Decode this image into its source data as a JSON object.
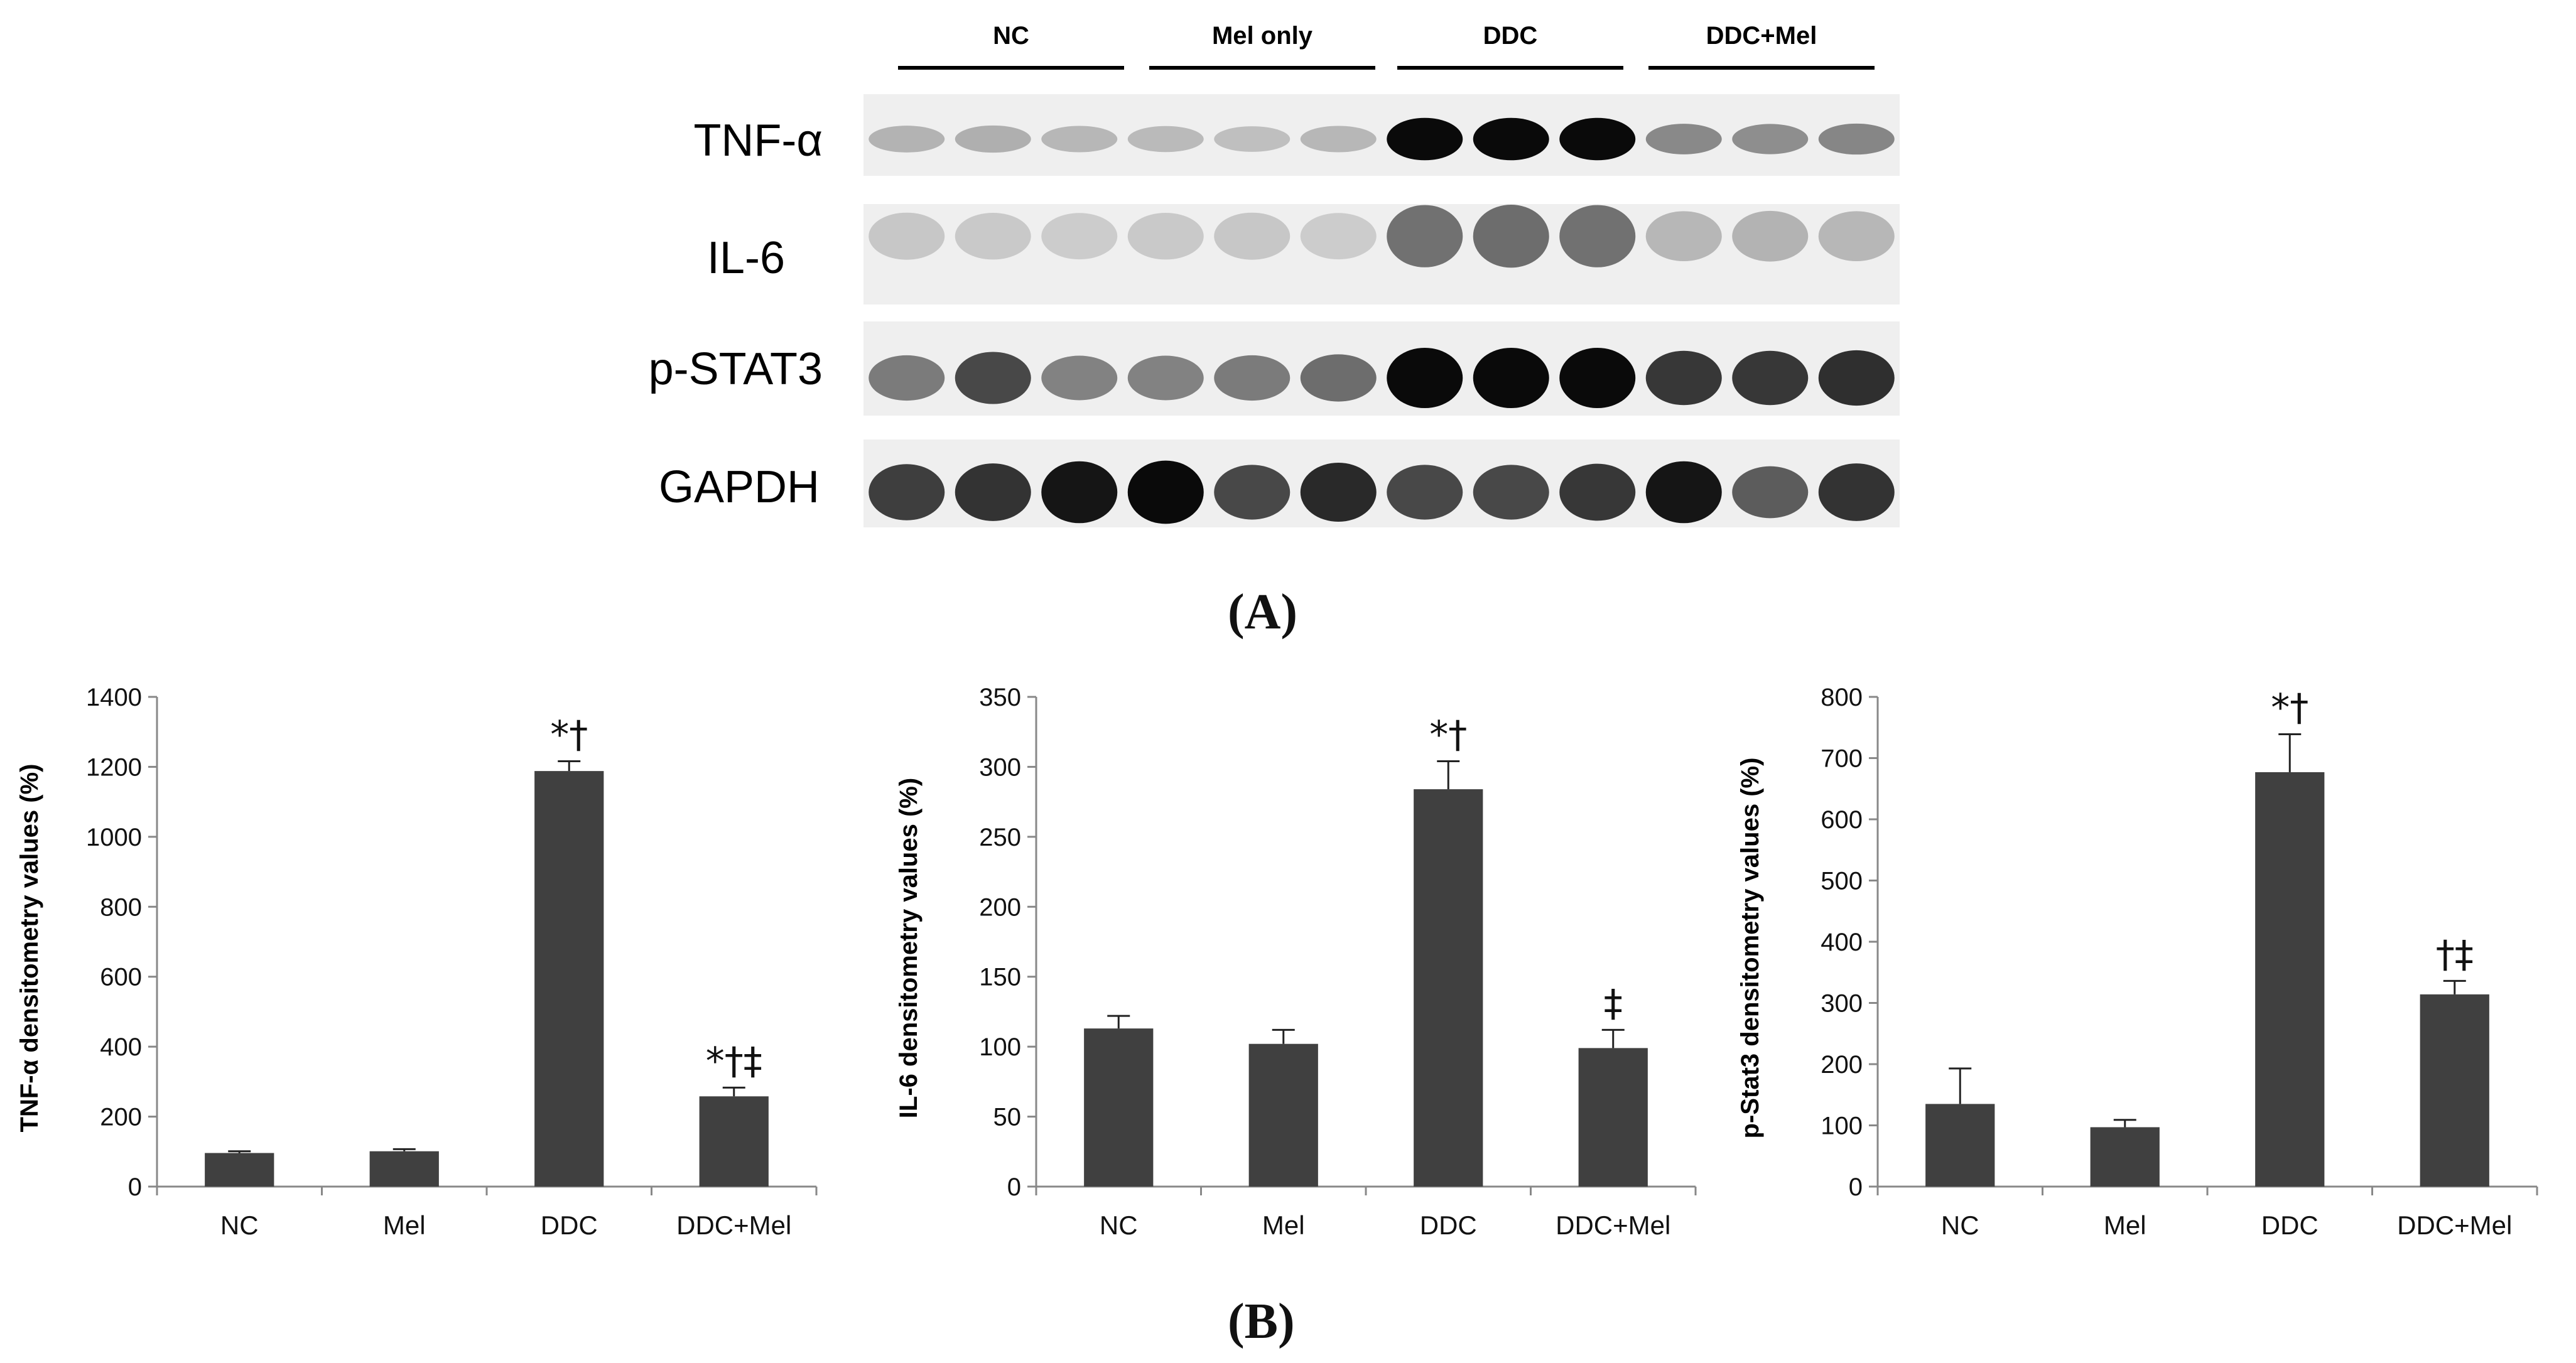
{
  "panel_a_label": "A",
  "panel_b_label": "B",
  "blot": {
    "groups": [
      "NC",
      "Mel only",
      "DDC",
      "DDC+Mel"
    ],
    "rows": [
      {
        "label": "TNF-α",
        "intensities": [
          0.18,
          0.2,
          0.16,
          0.14,
          0.12,
          0.16,
          1.0,
          1.0,
          1.0,
          0.38,
          0.36,
          0.4
        ]
      },
      {
        "label": "IL-6",
        "intensities": [
          0.08,
          0.07,
          0.06,
          0.07,
          0.08,
          0.06,
          0.5,
          0.52,
          0.5,
          0.16,
          0.18,
          0.16
        ]
      },
      {
        "label": "p-STAT3",
        "intensities": [
          0.45,
          0.7,
          0.42,
          0.42,
          0.45,
          0.52,
          1.0,
          1.0,
          1.0,
          0.78,
          0.78,
          0.82
        ]
      },
      {
        "label": "GAPDH",
        "intensities": [
          0.75,
          0.8,
          0.95,
          1.0,
          0.7,
          0.85,
          0.7,
          0.7,
          0.78,
          0.95,
          0.6,
          0.8
        ]
      }
    ],
    "colors": {
      "background": "#efefef",
      "band": "#0a0a0a"
    }
  },
  "chart_data": [
    {
      "type": "bar",
      "categories": [
        "NC",
        "Mel",
        "DDC",
        "DDC+Mel"
      ],
      "values": [
        96,
        101,
        1188,
        258
      ],
      "errors": [
        5,
        6,
        28,
        25
      ],
      "annotations": [
        "",
        "",
        "*†",
        "*†‡"
      ],
      "ylabel": "TNF-α densitometry values (%)",
      "ylim": [
        0,
        1400
      ],
      "yticks": [
        "0",
        "200",
        "400",
        "600",
        "800",
        "1000",
        "1200",
        "1400"
      ],
      "bar_color": "#404040"
    },
    {
      "type": "bar",
      "categories": [
        "NC",
        "Mel",
        "DDC",
        "DDC+Mel"
      ],
      "values": [
        113,
        102,
        284,
        99
      ],
      "errors": [
        9,
        10,
        20,
        13
      ],
      "annotations": [
        "",
        "",
        "*†",
        "‡"
      ],
      "ylabel": "IL-6 densitometry values (%)",
      "ylim": [
        0,
        350
      ],
      "yticks": [
        "0",
        "50",
        "100",
        "150",
        "200",
        "250",
        "300",
        "350"
      ],
      "bar_color": "#404040"
    },
    {
      "type": "bar",
      "categories": [
        "NC",
        "Mel",
        "DDC",
        "DDC+Mel"
      ],
      "values": [
        135,
        97,
        677,
        314
      ],
      "errors": [
        58,
        12,
        62,
        22
      ],
      "annotations": [
        "",
        "",
        "*†",
        "†‡"
      ],
      "ylabel": "p-Stat3 densitometry values (%)",
      "ylim": [
        0,
        800
      ],
      "yticks": [
        "0",
        "100",
        "200",
        "300",
        "400",
        "500",
        "600",
        "700",
        "800"
      ],
      "bar_color": "#404040"
    }
  ]
}
